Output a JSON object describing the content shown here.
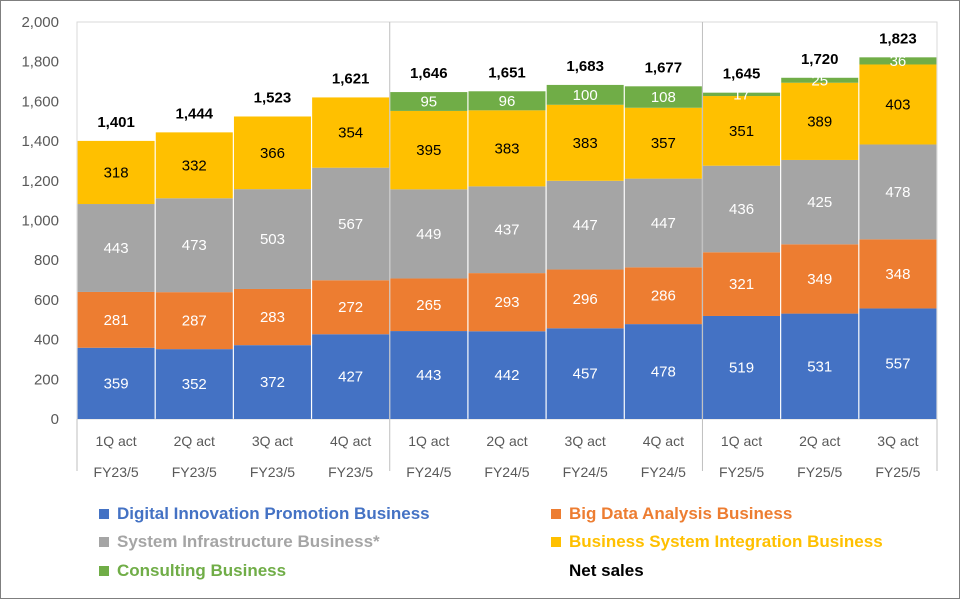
{
  "chart_data": {
    "type": "bar",
    "stacked": true,
    "title": "",
    "xlabel": "",
    "ylabel": "",
    "ylim": [
      0,
      2000
    ],
    "yticks": [
      0,
      200,
      400,
      600,
      800,
      1000,
      1200,
      1400,
      1600,
      1800,
      2000
    ],
    "ytick_labels": [
      "0",
      "200",
      "400",
      "600",
      "800",
      "1,000",
      "1,200",
      "1,400",
      "1,600",
      "1,800",
      "2,000"
    ],
    "grid": false,
    "legend_position": "bottom",
    "groups": [
      {
        "label": "FY23/5",
        "count": 4
      },
      {
        "label": "FY24/5",
        "count": 4
      },
      {
        "label": "FY25/5",
        "count": 3
      }
    ],
    "categories": [
      "1Q act",
      "2Q act",
      "3Q act",
      "4Q act",
      "1Q act",
      "2Q act",
      "3Q act",
      "4Q act",
      "1Q act",
      "2Q act",
      "3Q act"
    ],
    "period_labels": [
      "FY23/5",
      "FY23/5",
      "FY23/5",
      "FY23/5",
      "FY24/5",
      "FY24/5",
      "FY24/5",
      "FY24/5",
      "FY25/5",
      "FY25/5",
      "FY25/5"
    ],
    "series": [
      {
        "name": "Digital Innovation Promotion Business",
        "color": "#4472c4",
        "label_color": "#ffffff",
        "values": [
          359,
          352,
          372,
          427,
          443,
          442,
          457,
          478,
          519,
          531,
          557
        ]
      },
      {
        "name": "Big Data Analysis Business",
        "color": "#ed7d31",
        "label_color": "#ffffff",
        "values": [
          281,
          287,
          283,
          272,
          265,
          293,
          296,
          286,
          321,
          349,
          348
        ]
      },
      {
        "name": "System Infrastructure Business*",
        "color": "#a5a5a5",
        "label_color": "#ffffff",
        "values": [
          443,
          473,
          503,
          567,
          449,
          437,
          447,
          447,
          436,
          425,
          478
        ]
      },
      {
        "name": "Business System Integration Business",
        "color": "#ffc000",
        "label_color": "#000000",
        "values": [
          318,
          332,
          366,
          354,
          395,
          383,
          383,
          357,
          351,
          389,
          403
        ]
      },
      {
        "name": "Consulting Business",
        "color": "#70ad47",
        "label_color": "#ffffff",
        "values": [
          null,
          null,
          null,
          null,
          95,
          96,
          100,
          108,
          17,
          25,
          36
        ]
      }
    ],
    "totals_name": "Net sales",
    "totals": [
      "1,401",
      "1,444",
      "1,523",
      "1,621",
      "1,646",
      "1,651",
      "1,683",
      "1,677",
      "1,645",
      "1,720",
      "1,823"
    ]
  }
}
